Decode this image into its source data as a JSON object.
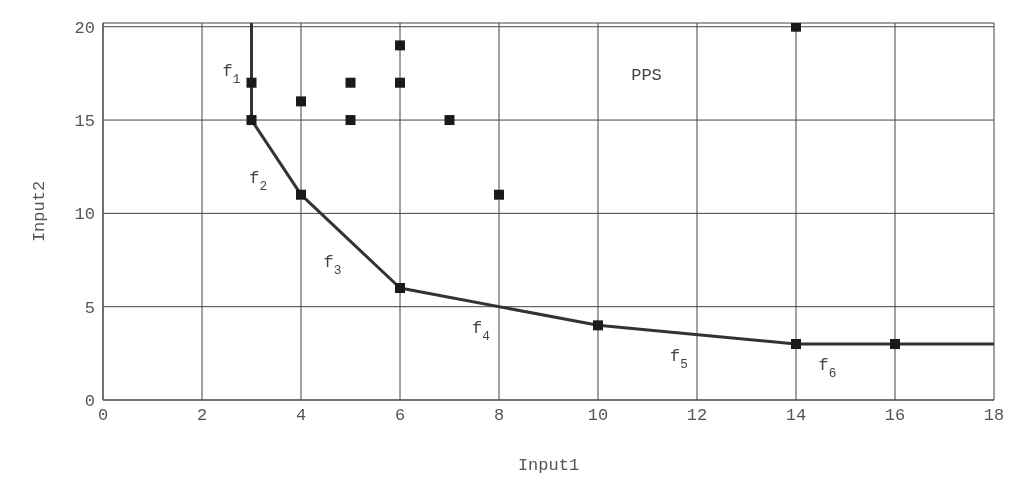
{
  "chart_data": {
    "type": "scatter",
    "xlabel": "Input1",
    "ylabel": "Input2",
    "xlim": [
      0,
      18
    ],
    "ylim": [
      0,
      20.2
    ],
    "xticks": [
      0,
      2,
      4,
      6,
      8,
      10,
      12,
      14,
      16,
      18
    ],
    "yticks": [
      0,
      5,
      10,
      15,
      20
    ],
    "grid": true,
    "legend": false,
    "marker": "square",
    "series": [
      {
        "color": "#1a1a1a",
        "x": [
          3,
          3,
          4,
          5,
          5,
          6,
          6,
          7,
          8,
          14,
          4,
          6,
          10,
          14,
          16
        ],
        "values": [
          17,
          15,
          16,
          17,
          15,
          19,
          17,
          15,
          11,
          20,
          11,
          6,
          4,
          3,
          3
        ]
      },
      {
        "type": "line",
        "marker": "none",
        "color": "#333333",
        "x": [
          3,
          3,
          4,
          6,
          10,
          14,
          16,
          18
        ],
        "values": [
          20.2,
          15,
          11,
          6,
          4,
          3,
          3,
          3
        ]
      }
    ],
    "annotations": [
      "f$_{1}$",
      "f$_{2}$",
      "f$_{3}$",
      "f$_{4}$",
      "f$_{5}$",
      "f$_{6}$",
      "PPS"
    ]
  }
}
